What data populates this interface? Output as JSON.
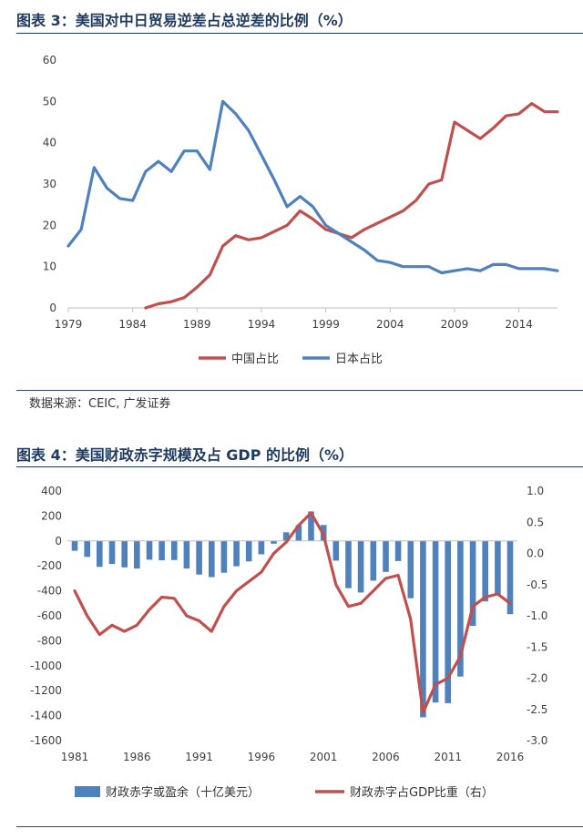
{
  "fig3": {
    "title": "图表 3：美国对中日贸易逆差占总逆差的比例（%）",
    "source": "数据来源：CEIC, 广发证券",
    "chart_data": {
      "type": "line",
      "yticks": [
        0,
        10,
        20,
        30,
        40,
        50,
        60
      ],
      "ylim": [
        0,
        60
      ],
      "xlim": [
        1979,
        2017
      ],
      "xticks": [
        1979,
        1984,
        1989,
        1994,
        1999,
        2004,
        2009,
        2014
      ],
      "grid": false,
      "legend_position": "bottom",
      "series": [
        {
          "name": "中国占比",
          "color": "#c0504d",
          "x": [
            1985,
            1986,
            1987,
            1988,
            1989,
            1990,
            1991,
            1992,
            1993,
            1994,
            1995,
            1996,
            1997,
            1998,
            1999,
            2000,
            2001,
            2002,
            2003,
            2004,
            2005,
            2006,
            2007,
            2008,
            2009,
            2010,
            2011,
            2012,
            2013,
            2014,
            2015,
            2016,
            2017
          ],
          "y": [
            0,
            1,
            1.5,
            2.5,
            5,
            8,
            15,
            17.5,
            16.5,
            17,
            18.5,
            20,
            23.5,
            21.5,
            19,
            18,
            17,
            19,
            20.5,
            22,
            23.5,
            26,
            30,
            31,
            45,
            43,
            41,
            43.5,
            46.5,
            47,
            49.5,
            47.5,
            47.5
          ]
        },
        {
          "name": "日本占比",
          "color": "#4f81bd",
          "x": [
            1979,
            1980,
            1981,
            1982,
            1983,
            1984,
            1985,
            1986,
            1987,
            1988,
            1989,
            1990,
            1991,
            1992,
            1993,
            1994,
            1995,
            1996,
            1997,
            1998,
            1999,
            2000,
            2001,
            2002,
            2003,
            2004,
            2005,
            2006,
            2007,
            2008,
            2009,
            2010,
            2011,
            2012,
            2013,
            2014,
            2015,
            2016,
            2017
          ],
          "y": [
            15,
            19,
            34,
            29,
            26.5,
            26,
            33,
            35.5,
            33,
            38,
            38,
            33.5,
            50,
            47,
            43,
            37,
            31,
            24.5,
            27,
            24.5,
            20,
            18,
            16,
            14,
            11.5,
            11,
            10,
            10,
            10,
            8.5,
            9,
            9.5,
            9,
            10.5,
            10.5,
            9.5,
            9.5,
            9.5,
            9
          ]
        }
      ]
    }
  },
  "fig4": {
    "title": "图表 4：美国财政赤字规模及占 GDP 的比例（%）",
    "chart_data": {
      "type": "bar",
      "yticks_left": [
        400,
        200,
        0,
        -200,
        -400,
        -600,
        -800,
        -1000,
        -1200,
        -1400,
        -1600
      ],
      "ylim_left": [
        -1600,
        400
      ],
      "yticks_right": [
        "1.0",
        "0.5",
        "0.0",
        "-0.5",
        "-1.0",
        "-1.5",
        "-2.0",
        "-2.5",
        "-3.0"
      ],
      "ylim_right": [
        -3.0,
        1.0
      ],
      "xlim": [
        1981,
        2016
      ],
      "xticks": [
        1981,
        1986,
        1991,
        1996,
        2001,
        2006,
        2011,
        2016
      ],
      "grid": false,
      "legend_position": "bottom",
      "series": [
        {
          "name": "财政赤字或盈余（十亿美元）",
          "type": "bar",
          "axis": "left",
          "color": "#4f81bd",
          "x": [
            1981,
            1982,
            1983,
            1984,
            1985,
            1986,
            1987,
            1988,
            1989,
            1990,
            1991,
            1992,
            1993,
            1994,
            1995,
            1996,
            1997,
            1998,
            1999,
            2000,
            2001,
            2002,
            2003,
            2004,
            2005,
            2006,
            2007,
            2008,
            2009,
            2010,
            2011,
            2012,
            2013,
            2014,
            2015,
            2016
          ],
          "y": [
            -79,
            -128,
            -208,
            -185,
            -212,
            -221,
            -150,
            -155,
            -153,
            -221,
            -269,
            -290,
            -255,
            -203,
            -164,
            -107,
            -22,
            69,
            126,
            236,
            128,
            -158,
            -378,
            -413,
            -318,
            -248,
            -161,
            -459,
            -1413,
            -1294,
            -1300,
            -1087,
            -680,
            -485,
            -439,
            -587
          ]
        },
        {
          "name": "财政赤字占GDP比重（右）",
          "type": "line",
          "axis": "right",
          "color": "#c0504d",
          "x": [
            1981,
            1982,
            1983,
            1984,
            1985,
            1986,
            1987,
            1988,
            1989,
            1990,
            1991,
            1992,
            1993,
            1994,
            1995,
            1996,
            1997,
            1998,
            1999,
            2000,
            2001,
            2002,
            2003,
            2004,
            2005,
            2006,
            2007,
            2008,
            2009,
            2010,
            2011,
            2012,
            2013,
            2014,
            2015,
            2016
          ],
          "y": [
            -0.6,
            -1.0,
            -1.3,
            -1.15,
            -1.25,
            -1.15,
            -0.9,
            -0.7,
            -0.72,
            -1.0,
            -1.08,
            -1.25,
            -0.85,
            -0.6,
            -0.45,
            -0.3,
            0.0,
            0.18,
            0.45,
            0.65,
            0.3,
            -0.5,
            -0.85,
            -0.8,
            -0.6,
            -0.4,
            -0.35,
            -1.05,
            -2.55,
            -2.1,
            -2.0,
            -1.65,
            -0.85,
            -0.7,
            -0.65,
            -0.8
          ]
        }
      ]
    }
  }
}
